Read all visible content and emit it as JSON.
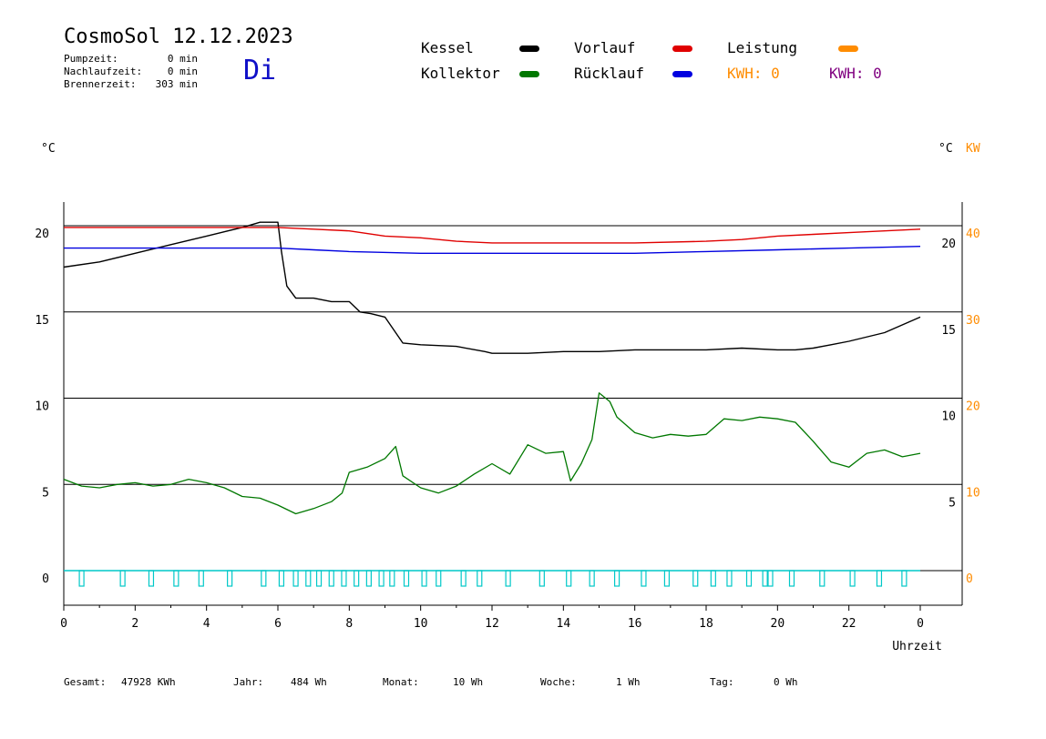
{
  "header": {
    "title": "CosmoSol 12.12.2023",
    "day": "Di",
    "stats": [
      {
        "label": "Pumpzeit:",
        "value": "0 min"
      },
      {
        "label": "Nachlaufzeit:",
        "value": "0 min"
      },
      {
        "label": "Brennerzeit:",
        "value": "303 min"
      }
    ]
  },
  "legend": {
    "kessel": {
      "label": "Kessel",
      "color": "#000000"
    },
    "vorlauf": {
      "label": "Vorlauf",
      "color": "#e00000"
    },
    "leistung": {
      "label": "Leistung",
      "color": "#ff8c00"
    },
    "kollektor": {
      "label": "Kollektor",
      "color": "#007800"
    },
    "ruecklauf": {
      "label": "Rücklauf",
      "color": "#0000e0"
    },
    "kwh1": {
      "label": "KWH: 0",
      "color": "#ff8c00"
    },
    "kwh2": {
      "label": "KWH: 0",
      "color": "#800080"
    }
  },
  "footer": [
    {
      "label": "Gesamt:",
      "value": "47928 KWh"
    },
    {
      "label": "Jahr:",
      "value": "484 Wh"
    },
    {
      "label": "Monat:",
      "value": "10 Wh"
    },
    {
      "label": "Woche:",
      "value": "1 Wh"
    },
    {
      "label": "Tag:",
      "value": "0 Wh"
    }
  ],
  "chart_data": {
    "type": "line",
    "xlabel": "Uhrzeit",
    "x_ticks": [
      "0",
      "2",
      "4",
      "6",
      "8",
      "10",
      "12",
      "14",
      "16",
      "18",
      "20",
      "22",
      "0"
    ],
    "xlim": [
      0,
      24
    ],
    "axes": {
      "left": {
        "unit": "°C",
        "ticks": [
          "0",
          "5",
          "10",
          "15",
          "20"
        ],
        "range": [
          0,
          20
        ]
      },
      "right_inner": {
        "unit": "°C",
        "ticks": [
          "5",
          "10",
          "15",
          "20"
        ],
        "range": [
          0,
          20
        ]
      },
      "right_outer": {
        "unit": "KW",
        "ticks": [
          "0",
          "10",
          "20",
          "30",
          "40"
        ],
        "range": [
          0,
          40
        ],
        "color": "#ff8c00"
      }
    },
    "gridlines_y": [
      5,
      10,
      15,
      20
    ],
    "series": [
      {
        "name": "Kessel",
        "color": "#000000",
        "x": [
          0,
          1,
          2,
          3,
          4,
          5,
          5.5,
          5.5,
          6.0,
          6.1,
          6.25,
          6.5,
          7.0,
          7.5,
          8.0,
          8.3,
          8.6,
          9.0,
          9.5,
          10.0,
          11.0,
          11.8,
          12.0,
          13.0,
          14.0,
          15.0,
          16.0,
          17.0,
          18.0,
          19.0,
          20.0,
          20.5,
          21.0,
          21.5,
          22.0,
          23.0,
          24.0
        ],
        "y": [
          17.6,
          17.9,
          18.4,
          18.9,
          19.4,
          19.9,
          20.2,
          20.2,
          20.2,
          18.5,
          16.5,
          15.8,
          15.8,
          15.6,
          15.6,
          15.0,
          14.9,
          14.7,
          13.2,
          13.1,
          13.0,
          12.7,
          12.6,
          12.6,
          12.7,
          12.7,
          12.8,
          12.8,
          12.8,
          12.9,
          12.8,
          12.8,
          12.9,
          13.1,
          13.3,
          13.8,
          14.7
        ]
      },
      {
        "name": "Vorlauf",
        "color": "#e00000",
        "x": [
          0,
          2,
          4,
          6,
          7,
          8,
          9,
          10,
          11,
          12,
          14,
          16,
          18,
          19,
          20,
          21,
          22,
          23,
          24
        ],
        "y": [
          19.9,
          19.9,
          19.9,
          19.9,
          19.8,
          19.7,
          19.4,
          19.3,
          19.1,
          19.0,
          19.0,
          19.0,
          19.1,
          19.2,
          19.4,
          19.5,
          19.6,
          19.7,
          19.8
        ]
      },
      {
        "name": "Rücklauf",
        "color": "#0000e0",
        "x": [
          0,
          2,
          4,
          6,
          7,
          8,
          10,
          12,
          14,
          16,
          18,
          20,
          22,
          24
        ],
        "y": [
          18.7,
          18.7,
          18.7,
          18.7,
          18.6,
          18.5,
          18.4,
          18.4,
          18.4,
          18.4,
          18.5,
          18.6,
          18.7,
          18.8
        ]
      },
      {
        "name": "Kollektor",
        "color": "#007800",
        "x": [
          0,
          0.5,
          1.0,
          1.5,
          2.0,
          2.5,
          3.0,
          3.5,
          4.0,
          4.5,
          5.0,
          5.5,
          6.0,
          6.5,
          7.0,
          7.5,
          7.8,
          8.0,
          8.5,
          9.0,
          9.3,
          9.5,
          10.0,
          10.5,
          11.0,
          11.5,
          12.0,
          12.5,
          13.0,
          13.5,
          14.0,
          14.2,
          14.5,
          14.8,
          15.0,
          15.3,
          15.5,
          16.0,
          16.5,
          17.0,
          17.5,
          18.0,
          18.5,
          19.0,
          19.5,
          20.0,
          20.5,
          21.0,
          21.5,
          22.0,
          22.5,
          23.0,
          23.5,
          24.0
        ],
        "y": [
          5.3,
          4.9,
          4.8,
          5.0,
          5.1,
          4.9,
          5.0,
          5.3,
          5.1,
          4.8,
          4.3,
          4.2,
          3.8,
          3.3,
          3.6,
          4.0,
          4.5,
          5.7,
          6.0,
          6.5,
          7.2,
          5.5,
          4.8,
          4.5,
          4.9,
          5.6,
          6.2,
          5.6,
          7.3,
          6.8,
          6.9,
          5.2,
          6.2,
          7.6,
          10.3,
          9.8,
          8.9,
          8.0,
          7.7,
          7.9,
          7.8,
          7.9,
          8.8,
          8.7,
          8.9,
          8.8,
          8.6,
          7.5,
          6.3,
          6.0,
          6.8,
          7.0,
          6.6,
          6.8
        ]
      },
      {
        "name": "Pumpe",
        "color": "#00c8c8",
        "pulses": [
          0.5,
          1.65,
          2.45,
          3.15,
          3.85,
          4.65,
          5.6,
          6.1,
          6.5,
          6.85,
          7.15,
          7.5,
          7.85,
          8.2,
          8.55,
          8.9,
          9.2,
          9.6,
          10.1,
          10.5,
          11.2,
          11.65,
          12.45,
          13.4,
          14.15,
          14.8,
          15.5,
          16.25,
          16.9,
          17.7,
          18.2,
          18.65,
          19.2,
          19.65,
          19.8,
          20.4,
          21.25,
          22.1,
          22.85,
          23.55
        ]
      }
    ]
  }
}
